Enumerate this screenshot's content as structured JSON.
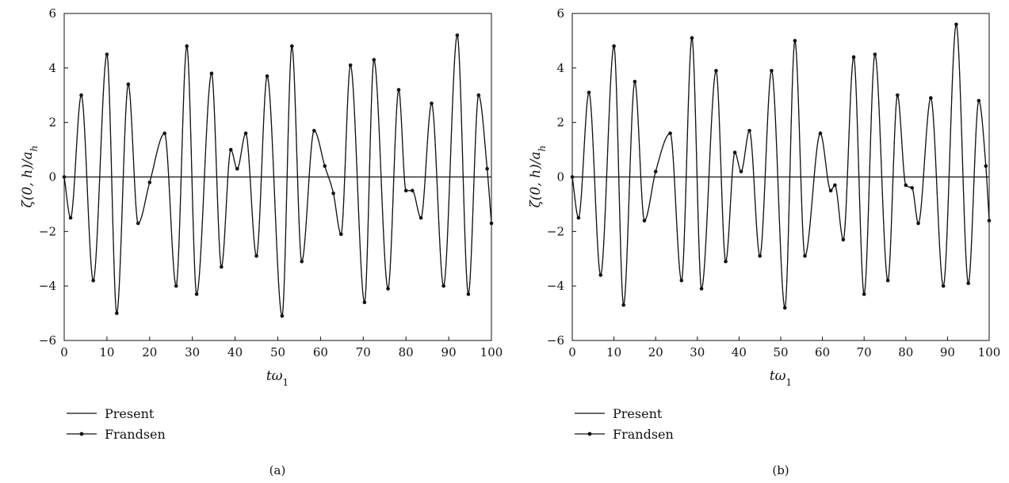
{
  "chart_data": [
    {
      "type": "line",
      "panel_label": "(a)",
      "xlabel": "tω1",
      "ylabel": "ζ(0, h)/a_h",
      "xlim": [
        0,
        100
      ],
      "ylim": [
        -6,
        6
      ],
      "xticks": [
        "0",
        "10",
        "20",
        "30",
        "40",
        "50",
        "60",
        "70",
        "80",
        "90",
        "100"
      ],
      "yticks": [
        "6",
        "4",
        "2",
        "0",
        "−2",
        "−4",
        "−6"
      ],
      "grid": false,
      "legend_position": "bottom-left",
      "x": [
        0,
        1.5,
        4,
        6.8,
        10,
        12.3,
        15,
        17.3,
        20,
        23.5,
        26.2,
        28.7,
        31,
        34.5,
        36.8,
        39,
        40.5,
        42.5,
        45,
        47.5,
        51,
        53.3,
        55.6,
        58.5,
        61,
        63,
        64.8,
        67,
        70.3,
        72.5,
        75.8,
        78.3,
        80,
        81.5,
        83.5,
        86,
        88.8,
        92,
        94.6,
        97,
        99,
        100
      ],
      "series": [
        {
          "name": "Present",
          "values": [
            0,
            -1.5,
            3,
            -3.8,
            4.5,
            -5,
            3.4,
            -1.7,
            -0.2,
            1.6,
            -4,
            4.8,
            -4.3,
            3.8,
            -3.3,
            1,
            0.3,
            1.6,
            -2.9,
            3.7,
            -5.1,
            4.8,
            -3.1,
            1.7,
            0.4,
            -0.6,
            -2.1,
            4.1,
            -4.6,
            4.3,
            -4.1,
            3.2,
            -0.5,
            -0.5,
            -1.5,
            2.7,
            -4,
            5.2,
            -4.3,
            3,
            0.3,
            -1.7
          ]
        },
        {
          "name": "Frandsen",
          "values": [
            0,
            -1.5,
            3,
            -3.8,
            4.5,
            -5,
            3.4,
            -1.7,
            -0.2,
            1.6,
            -4,
            4.8,
            -4.3,
            3.8,
            -3.3,
            1,
            0.3,
            1.6,
            -2.9,
            3.7,
            -5.1,
            4.8,
            -3.1,
            1.7,
            0.4,
            -0.6,
            -2.1,
            4.1,
            -4.6,
            4.3,
            -4.1,
            3.2,
            -0.5,
            -0.5,
            -1.5,
            2.7,
            -4,
            5.2,
            -4.3,
            3,
            0.3,
            -1.7
          ]
        }
      ]
    },
    {
      "type": "line",
      "panel_label": "(b)",
      "xlabel": "tω1",
      "ylabel": "ζ(0, h)/a_h",
      "xlim": [
        0,
        100
      ],
      "ylim": [
        -6,
        6
      ],
      "xticks": [
        "0",
        "10",
        "20",
        "30",
        "40",
        "50",
        "60",
        "70",
        "80",
        "90",
        "100"
      ],
      "yticks": [
        "6",
        "4",
        "2",
        "0",
        "−2",
        "−4",
        "−6"
      ],
      "grid": false,
      "legend_position": "bottom-left",
      "x": [
        0,
        1.5,
        4,
        6.8,
        10,
        12.3,
        15,
        17.3,
        20,
        23.5,
        26.2,
        28.7,
        31,
        34.5,
        36.8,
        39,
        40.5,
        42.5,
        45,
        47.8,
        51,
        53.4,
        55.8,
        59.5,
        62,
        63,
        65,
        67.5,
        70,
        72.6,
        75.7,
        78,
        80,
        81.5,
        83,
        86,
        89,
        92.1,
        95,
        97.5,
        99.2,
        100
      ],
      "series": [
        {
          "name": "Present",
          "values": [
            0,
            -1.5,
            3.1,
            -3.6,
            4.8,
            -4.7,
            3.5,
            -1.6,
            0.2,
            1.6,
            -3.8,
            5.1,
            -4.1,
            3.9,
            -3.1,
            0.9,
            0.2,
            1.7,
            -2.9,
            3.9,
            -4.8,
            5,
            -2.9,
            1.6,
            -0.5,
            -0.3,
            -2.3,
            4.4,
            -4.3,
            4.5,
            -3.8,
            3,
            -0.3,
            -0.4,
            -1.7,
            2.9,
            -4,
            5.6,
            -3.9,
            2.8,
            0.4,
            -1.6
          ]
        },
        {
          "name": "Frandsen",
          "values": [
            0,
            -1.5,
            3.1,
            -3.6,
            4.8,
            -4.7,
            3.5,
            -1.6,
            0.2,
            1.6,
            -3.8,
            5.1,
            -4.1,
            3.9,
            -3.1,
            0.9,
            0.2,
            1.7,
            -2.9,
            3.9,
            -4.8,
            5,
            -2.9,
            1.6,
            -0.5,
            -0.3,
            -2.3,
            4.4,
            -4.3,
            4.5,
            -3.8,
            3,
            -0.3,
            -0.4,
            -1.7,
            2.9,
            -4,
            5.6,
            -3.9,
            2.8,
            0.4,
            -1.6
          ]
        }
      ]
    }
  ]
}
